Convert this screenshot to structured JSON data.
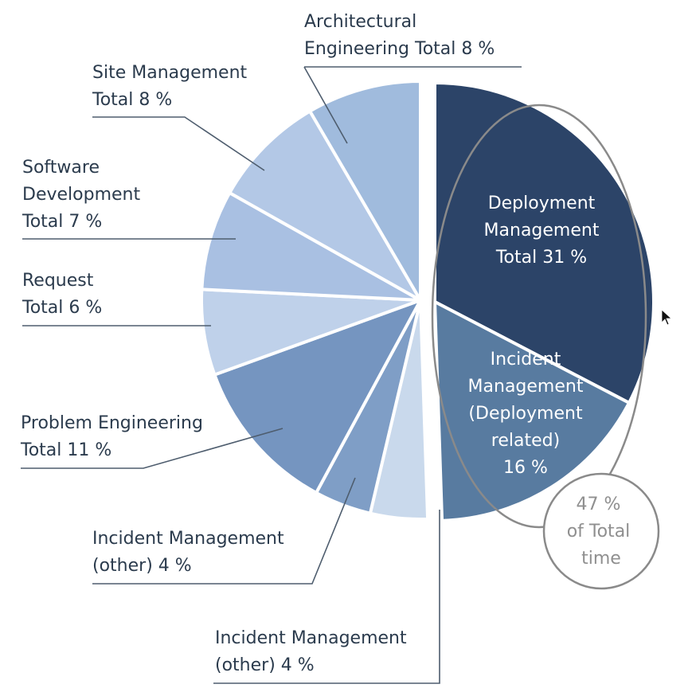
{
  "chart_data": {
    "type": "pie",
    "slices": [
      {
        "label_lines": [
          "Deployment",
          "Management",
          "Total 31 %"
        ],
        "value": 31,
        "color": "#2c4468",
        "label_position": "inside"
      },
      {
        "label_lines": [
          "Incident",
          "Management",
          "(Deployment",
          "related)",
          "16 %"
        ],
        "value": 16,
        "color": "#587ba0",
        "label_position": "inside"
      },
      {
        "label_lines": [
          "Incident Management",
          "(other) 4 %"
        ],
        "value": 4,
        "color": "#c9d9ec",
        "label_position": "outside"
      },
      {
        "label_lines": [
          "Incident Management",
          "(other) 4 %"
        ],
        "value": 4,
        "color": "#7f9ec6",
        "label_position": "outside"
      },
      {
        "label_lines": [
          "Problem Engineering",
          "Total 11 %"
        ],
        "value": 11,
        "color": "#7595c0",
        "label_position": "outside"
      },
      {
        "label_lines": [
          "Request",
          "Total 6 %"
        ],
        "value": 6,
        "color": "#bfd1ea",
        "label_position": "outside"
      },
      {
        "label_lines": [
          "Software",
          "Development",
          "Total 7 %"
        ],
        "value": 7,
        "color": "#a9c0e2",
        "label_position": "outside"
      },
      {
        "label_lines": [
          "Site Management",
          "Total 8 %"
        ],
        "value": 8,
        "color": "#b3c8e6",
        "label_position": "outside"
      },
      {
        "label_lines": [
          "Architectural",
          "Engineering Total 8 %"
        ],
        "value": 8,
        "color": "#a0bbdd",
        "label_position": "outside"
      }
    ],
    "callout": {
      "lines": [
        "47 %",
        "of Total",
        "time"
      ]
    },
    "colors": {
      "label_text": "#2b3b4d",
      "inside_text": "#ffffff",
      "leader": "#4e5d6e",
      "ring": "#8a8a8a"
    }
  }
}
